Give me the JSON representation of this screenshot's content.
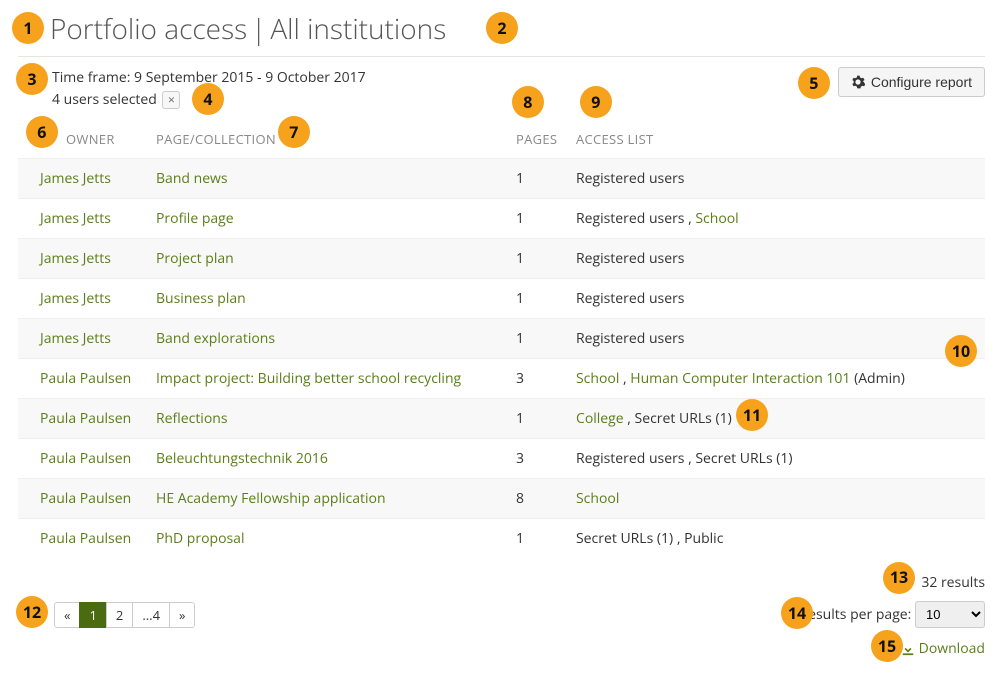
{
  "title_left": "Portfolio access",
  "title_sep": " | ",
  "title_right": "All institutions",
  "timeframe": "Time frame: 9 September 2015 - 9 October 2017",
  "selected_users": "4 users selected",
  "configure_label": "Configure report",
  "headers": {
    "owner": "OWNER",
    "page": "PAGE/COLLECTION",
    "pages": "PAGES",
    "access": "ACCESS LIST"
  },
  "rows": [
    {
      "owner": "James Jetts",
      "page": "Band news",
      "pages": "1",
      "access": [
        {
          "t": "text",
          "v": "Registered users"
        }
      ]
    },
    {
      "owner": "James Jetts",
      "page": "Profile page",
      "pages": "1",
      "access": [
        {
          "t": "text",
          "v": "Registered users , "
        },
        {
          "t": "link",
          "v": "School"
        }
      ]
    },
    {
      "owner": "James Jetts",
      "page": "Project plan",
      "pages": "1",
      "access": [
        {
          "t": "text",
          "v": "Registered users"
        }
      ]
    },
    {
      "owner": "James Jetts",
      "page": "Business plan",
      "pages": "1",
      "access": [
        {
          "t": "text",
          "v": "Registered users"
        }
      ]
    },
    {
      "owner": "James Jetts",
      "page": "Band explorations",
      "pages": "1",
      "access": [
        {
          "t": "text",
          "v": "Registered users"
        }
      ]
    },
    {
      "owner": "Paula Paulsen",
      "page": "Impact project: Building better school recycling",
      "pages": "3",
      "access": [
        {
          "t": "link",
          "v": "School"
        },
        {
          "t": "text",
          "v": " , "
        },
        {
          "t": "link",
          "v": "Human Computer Interaction 101"
        },
        {
          "t": "text",
          "v": " (Admin)"
        }
      ]
    },
    {
      "owner": "Paula Paulsen",
      "page": "Reflections",
      "pages": "1",
      "access": [
        {
          "t": "link",
          "v": "College"
        },
        {
          "t": "text",
          "v": " , Secret URLs (1)"
        }
      ]
    },
    {
      "owner": "Paula Paulsen",
      "page": "Beleuchtungstechnik 2016",
      "pages": "3",
      "access": [
        {
          "t": "text",
          "v": "Registered users , Secret URLs (1)"
        }
      ]
    },
    {
      "owner": "Paula Paulsen",
      "page": "HE Academy Fellowship application",
      "pages": "8",
      "access": [
        {
          "t": "link",
          "v": "School"
        }
      ]
    },
    {
      "owner": "Paula Paulsen",
      "page": "PhD proposal",
      "pages": "1",
      "access": [
        {
          "t": "text",
          "v": "Secret URLs (1) , Public"
        }
      ]
    }
  ],
  "pagination": [
    "«",
    "1",
    "2",
    "...4",
    "»"
  ],
  "pagination_active": 1,
  "results_count": "32 results",
  "results_per_label": "Results per page:",
  "results_per_value": "10",
  "download_label": "Download",
  "annotations": {
    "1": "1",
    "2": "2",
    "3": "3",
    "4": "4",
    "5": "5",
    "6": "6",
    "7": "7",
    "8": "8",
    "9": "9",
    "10": "10",
    "11": "11",
    "12": "12",
    "13": "13",
    "14": "14",
    "15": "15"
  }
}
